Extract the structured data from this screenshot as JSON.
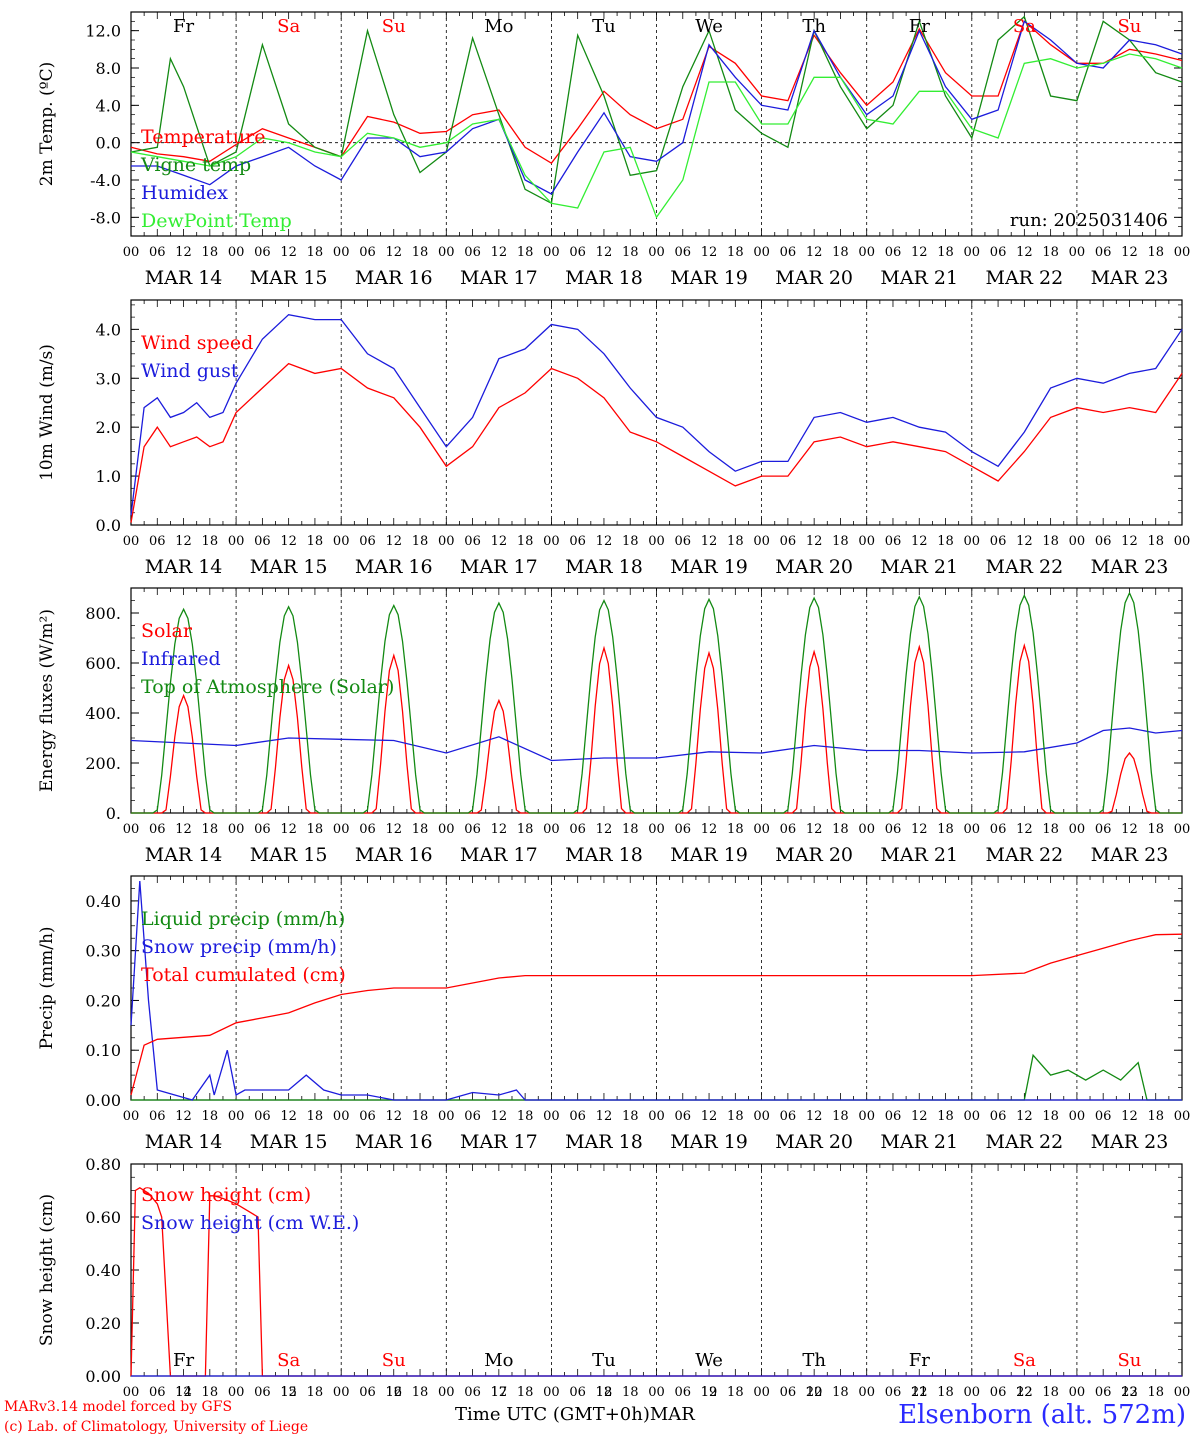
{
  "colors": {
    "red": "#ff0000",
    "green": "#138a13",
    "blue": "#1c1cdc",
    "lightgreen": "#33ee33",
    "black": "#000000"
  },
  "x_axis": {
    "hour_ticks": [
      "00",
      "06",
      "12",
      "18"
    ],
    "final_tick": "00",
    "dates": [
      "MAR 14",
      "MAR 15",
      "MAR 16",
      "MAR 17",
      "MAR 18",
      "MAR 19",
      "MAR 20",
      "MAR 21",
      "MAR 22",
      "MAR 23"
    ],
    "day_numbers": [
      "14",
      "15",
      "16",
      "17",
      "18",
      "19",
      "20",
      "21",
      "22",
      "23"
    ],
    "weekdays": [
      {
        "label": "Fr",
        "weekend": false
      },
      {
        "label": "Sa",
        "weekend": true
      },
      {
        "label": "Su",
        "weekend": true
      },
      {
        "label": "Mo",
        "weekend": false
      },
      {
        "label": "Tu",
        "weekend": false
      },
      {
        "label": "We",
        "weekend": false
      },
      {
        "label": "Th",
        "weekend": false
      },
      {
        "label": "Fr",
        "weekend": false
      },
      {
        "label": "Sa",
        "weekend": true
      },
      {
        "label": "Su",
        "weekend": true
      }
    ],
    "bottom_title": "Time UTC (GMT+0h)",
    "month": "MAR"
  },
  "footer": {
    "model_line1": "MARv3.14 model forced by GFS",
    "model_line2": "(c) Lab. of Climatology, University of Liege",
    "station": "Elsenborn (alt. 572m)"
  },
  "chart_data": [
    {
      "type": "line",
      "ylabel": "2m Temp. (ºC)",
      "ylim": [
        -10.0,
        14.0
      ],
      "yticks": [
        "-8.0",
        "-4.0",
        "0.0",
        "4.0",
        "8.0",
        "12.0"
      ],
      "ytick_values": [
        -8,
        -4,
        0,
        4,
        8,
        12
      ],
      "zero_line": true,
      "annotation": "run: 2025031406",
      "x_unit": "hours since MAR 14 00 UTC",
      "series": [
        {
          "name": "Temperature",
          "color": "red",
          "x": [
            0,
            6,
            12,
            18,
            24,
            30,
            36,
            42,
            48,
            54,
            60,
            66,
            72,
            78,
            84,
            90,
            96,
            102,
            108,
            114,
            120,
            126,
            132,
            138,
            144,
            150,
            156,
            162,
            168,
            174,
            180,
            186,
            192,
            198,
            204,
            210,
            216,
            222,
            228,
            234,
            240
          ],
          "y": [
            -0.5,
            -1.2,
            -1.5,
            -2.0,
            -0.2,
            1.5,
            0.5,
            -0.5,
            -1.5,
            2.8,
            2.2,
            1.0,
            1.2,
            3.0,
            3.5,
            -0.5,
            -2.2,
            1.5,
            5.5,
            3.0,
            1.5,
            2.5,
            10.3,
            8.5,
            5.0,
            4.5,
            11.5,
            7.5,
            4.0,
            6.5,
            12.2,
            7.5,
            5.0,
            5.0,
            13.0,
            10.5,
            8.5,
            8.5,
            10.0,
            9.5,
            8.8
          ]
        },
        {
          "name": "Vigne temp",
          "color": "green",
          "x": [
            0,
            6,
            9,
            12,
            18,
            24,
            30,
            36,
            42,
            48,
            54,
            60,
            66,
            72,
            78,
            84,
            90,
            96,
            102,
            108,
            114,
            120,
            126,
            132,
            138,
            144,
            150,
            156,
            162,
            168,
            174,
            180,
            186,
            192,
            198,
            204,
            210,
            216,
            222,
            228,
            234,
            240
          ],
          "y": [
            -1.0,
            -0.5,
            9.0,
            6.0,
            -2.5,
            -1.0,
            10.5,
            2.0,
            -0.5,
            -1.5,
            12.0,
            3.0,
            -3.2,
            -1.0,
            11.2,
            3.0,
            -5.0,
            -6.5,
            11.5,
            5.0,
            -3.5,
            -3.0,
            6.0,
            12.0,
            3.5,
            1.0,
            -0.5,
            12.0,
            6.0,
            1.5,
            4.0,
            13.0,
            5.0,
            0.5,
            11.0,
            13.5,
            5.0,
            4.5,
            13.0,
            11.0,
            7.5,
            6.5
          ]
        },
        {
          "name": "Humidex",
          "color": "blue",
          "x": [
            0,
            6,
            12,
            18,
            24,
            30,
            36,
            42,
            48,
            54,
            60,
            66,
            72,
            78,
            84,
            90,
            96,
            102,
            108,
            114,
            120,
            126,
            132,
            138,
            144,
            150,
            156,
            162,
            168,
            174,
            180,
            186,
            192,
            198,
            204,
            210,
            216,
            222,
            228,
            234,
            240
          ],
          "y": [
            -2.5,
            -2.5,
            -3.5,
            -4.5,
            -2.5,
            -1.5,
            -0.5,
            -2.5,
            -4.0,
            0.5,
            0.5,
            -1.5,
            -1.0,
            1.5,
            2.5,
            -4.0,
            -5.5,
            -1.0,
            3.2,
            -1.5,
            -2.0,
            0.0,
            10.5,
            7.0,
            4.0,
            3.5,
            12.0,
            7.0,
            3.0,
            5.0,
            12.0,
            6.0,
            2.5,
            3.5,
            13.0,
            11.0,
            8.5,
            8.0,
            11.0,
            10.5,
            9.5
          ]
        },
        {
          "name": "DewPoint Temp",
          "color": "lightgreen",
          "x": [
            0,
            6,
            12,
            18,
            24,
            30,
            36,
            42,
            48,
            54,
            60,
            66,
            72,
            78,
            84,
            90,
            96,
            102,
            108,
            114,
            120,
            126,
            132,
            138,
            144,
            150,
            156,
            162,
            168,
            174,
            180,
            186,
            192,
            198,
            204,
            210,
            216,
            222,
            228,
            234,
            240
          ],
          "y": [
            -1.0,
            -1.5,
            -2.0,
            -2.5,
            -1.5,
            0.5,
            0.0,
            -1.0,
            -1.5,
            1.0,
            0.5,
            -0.5,
            0.0,
            2.0,
            2.5,
            -3.5,
            -6.5,
            -7.0,
            -1.0,
            -0.5,
            -8.0,
            -4.0,
            6.5,
            6.5,
            2.0,
            2.0,
            7.0,
            7.0,
            2.5,
            2.0,
            5.5,
            5.5,
            1.5,
            0.5,
            8.5,
            9.0,
            8.0,
            8.5,
            9.5,
            9.0,
            8.0
          ]
        }
      ]
    },
    {
      "type": "line",
      "ylabel": "10m Wind (m/s)",
      "ylim": [
        0.0,
        4.6
      ],
      "yticks": [
        "0.0",
        "1.0",
        "2.0",
        "3.0",
        "4.0"
      ],
      "ytick_values": [
        0,
        1,
        2,
        3,
        4
      ],
      "x_unit": "hours since MAR 14 00 UTC",
      "series": [
        {
          "name": "Wind speed",
          "color": "red",
          "x": [
            0,
            3,
            6,
            9,
            12,
            15,
            18,
            21,
            24,
            30,
            36,
            42,
            48,
            54,
            60,
            66,
            72,
            78,
            84,
            90,
            96,
            102,
            108,
            114,
            120,
            126,
            132,
            138,
            144,
            150,
            156,
            162,
            168,
            174,
            180,
            186,
            192,
            198,
            204,
            210,
            216,
            222,
            228,
            234,
            240
          ],
          "y": [
            0.05,
            1.6,
            2.0,
            1.6,
            1.7,
            1.8,
            1.6,
            1.7,
            2.3,
            2.8,
            3.3,
            3.1,
            3.2,
            2.8,
            2.6,
            2.0,
            1.2,
            1.6,
            2.4,
            2.7,
            3.2,
            3.0,
            2.6,
            1.9,
            1.7,
            1.4,
            1.1,
            0.8,
            1.0,
            1.0,
            1.7,
            1.8,
            1.6,
            1.7,
            1.6,
            1.5,
            1.2,
            0.9,
            1.5,
            2.2,
            2.4,
            2.3,
            2.4,
            2.3,
            3.1
          ]
        },
        {
          "name": "Wind gust",
          "color": "blue",
          "x": [
            0,
            3,
            6,
            9,
            12,
            15,
            18,
            21,
            24,
            30,
            36,
            42,
            48,
            54,
            60,
            66,
            72,
            78,
            84,
            90,
            96,
            102,
            108,
            114,
            120,
            126,
            132,
            138,
            144,
            150,
            156,
            162,
            168,
            174,
            180,
            186,
            192,
            198,
            204,
            210,
            216,
            222,
            228,
            234,
            240
          ],
          "y": [
            0.2,
            2.4,
            2.6,
            2.2,
            2.3,
            2.5,
            2.2,
            2.3,
            2.9,
            3.8,
            4.3,
            4.2,
            4.2,
            3.5,
            3.2,
            2.4,
            1.6,
            2.2,
            3.4,
            3.6,
            4.1,
            4.0,
            3.5,
            2.8,
            2.2,
            2.0,
            1.5,
            1.1,
            1.3,
            1.3,
            2.2,
            2.3,
            2.1,
            2.2,
            2.0,
            1.9,
            1.5,
            1.2,
            1.9,
            2.8,
            3.0,
            2.9,
            3.1,
            3.2,
            4.0
          ]
        }
      ]
    },
    {
      "type": "line",
      "ylabel": "Energy fluxes (W/m²)",
      "ylim": [
        0,
        900
      ],
      "yticks": [
        "0.",
        "200.",
        "400.",
        "600.",
        "800."
      ],
      "ytick_values": [
        0,
        200,
        400,
        600,
        800
      ],
      "x_unit": "hours since MAR 14 00 UTC",
      "series": [
        {
          "name": "Solar",
          "color": "red",
          "peak_hour": 12,
          "daily_peaks": [
            470,
            590,
            630,
            450,
            660,
            640,
            645,
            665,
            670,
            240
          ]
        },
        {
          "name": "Infrared",
          "color": "blue",
          "x": [
            0,
            12,
            24,
            36,
            48,
            60,
            72,
            84,
            96,
            108,
            120,
            132,
            144,
            156,
            168,
            180,
            192,
            204,
            216,
            222,
            228,
            234,
            240
          ],
          "y": [
            290,
            280,
            270,
            300,
            295,
            290,
            240,
            305,
            210,
            220,
            220,
            245,
            240,
            270,
            250,
            250,
            240,
            245,
            280,
            330,
            340,
            320,
            330
          ]
        },
        {
          "name": "Top of Atmosphere (Solar)",
          "color": "green",
          "peak_hour": 12,
          "daily_peaks": [
            815,
            825,
            830,
            840,
            850,
            855,
            860,
            865,
            870,
            880
          ]
        }
      ]
    },
    {
      "type": "line",
      "ylabel": "Precip (mm/h)",
      "ylim": [
        0.0,
        0.45
      ],
      "yticks": [
        "0.00",
        "0.10",
        "0.20",
        "0.30",
        "0.40"
      ],
      "ytick_values": [
        0,
        0.1,
        0.2,
        0.3,
        0.4
      ],
      "x_unit": "hours since MAR 14 00 UTC",
      "series": [
        {
          "name": "Liquid precip (mm/h)",
          "color": "green",
          "x": [
            0,
            200,
            204,
            206,
            210,
            214,
            218,
            222,
            226,
            230,
            232,
            240
          ],
          "y": [
            0,
            0,
            0,
            0.09,
            0.05,
            0.06,
            0.04,
            0.06,
            0.04,
            0.075,
            0,
            0
          ]
        },
        {
          "name": "Snow precip (mm/h)",
          "color": "blue",
          "x": [
            0,
            2,
            4,
            6,
            10,
            14,
            18,
            19,
            22,
            24,
            26,
            30,
            36,
            40,
            44,
            48,
            54,
            60,
            72,
            78,
            84,
            88,
            90,
            240
          ],
          "y": [
            0.15,
            0.44,
            0.2,
            0.02,
            0.01,
            0.0,
            0.05,
            0.01,
            0.1,
            0.01,
            0.02,
            0.02,
            0.02,
            0.05,
            0.02,
            0.01,
            0.01,
            0.0,
            0.0,
            0.015,
            0.01,
            0.02,
            0.0,
            0.0
          ]
        },
        {
          "name": "Total cumulated (cm)",
          "color": "red",
          "x": [
            0,
            3,
            6,
            12,
            18,
            24,
            30,
            36,
            42,
            48,
            54,
            60,
            66,
            72,
            78,
            84,
            90,
            96,
            120,
            144,
            168,
            192,
            204,
            210,
            216,
            222,
            228,
            234,
            240
          ],
          "y": [
            0.01,
            0.11,
            0.122,
            0.126,
            0.13,
            0.155,
            0.165,
            0.175,
            0.195,
            0.212,
            0.22,
            0.225,
            0.225,
            0.225,
            0.235,
            0.245,
            0.25,
            0.25,
            0.25,
            0.25,
            0.25,
            0.25,
            0.255,
            0.275,
            0.29,
            0.305,
            0.32,
            0.332,
            0.333
          ]
        }
      ]
    },
    {
      "type": "line",
      "ylabel": "Snow height (cm)",
      "ylim": [
        0.0,
        0.8
      ],
      "yticks": [
        "0.00",
        "0.20",
        "0.40",
        "0.60",
        "0.80"
      ],
      "ytick_values": [
        0,
        0.2,
        0.4,
        0.6,
        0.8
      ],
      "x_unit": "hours since MAR 14 00 UTC",
      "series": [
        {
          "name": "Snow height (cm)",
          "color": "red",
          "x": [
            0,
            1,
            2,
            4,
            6,
            7,
            9,
            10,
            11,
            17,
            18,
            19,
            21,
            24,
            27,
            29,
            30,
            31,
            240
          ],
          "y": [
            0,
            0.7,
            0.71,
            0.69,
            0.65,
            0.6,
            0.0,
            0.0,
            0.0,
            0.0,
            0.68,
            0.68,
            0.67,
            0.65,
            0.62,
            0.6,
            0.0,
            0.0,
            0.0
          ]
        },
        {
          "name": "Snow height (cm W.E.)",
          "color": "blue",
          "x": [
            0,
            240
          ],
          "y": [
            0,
            0
          ]
        }
      ]
    }
  ]
}
